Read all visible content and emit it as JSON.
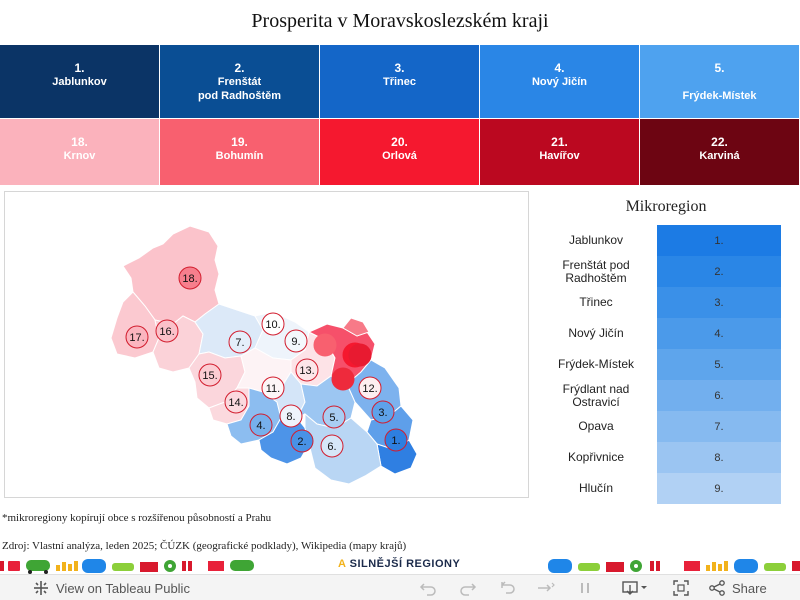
{
  "title": "Prosperita v Moravskoslezském kraji",
  "top_tiles": [
    {
      "rank": "1.",
      "name": "Jablunkov",
      "color": "#0b3466"
    },
    {
      "rank": "2.",
      "name": "Frenštát\npod Radhoštěm",
      "color": "#0a4e94"
    },
    {
      "rank": "3.",
      "name": "Třinec",
      "color": "#1466c8"
    },
    {
      "rank": "4.",
      "name": "Nový Jičín",
      "color": "#2a86e6"
    },
    {
      "rank": "5.",
      "name": "Frýdek-Místek",
      "color": "#4ea2ef"
    }
  ],
  "bottom_tiles": [
    {
      "rank": "18.",
      "name": "Krnov",
      "color": "#fbb2bc"
    },
    {
      "rank": "19.",
      "name": "Bohumín",
      "color": "#f8606f"
    },
    {
      "rank": "20.",
      "name": "Orlová",
      "color": "#f5182f"
    },
    {
      "rank": "21.",
      "name": "Havířov",
      "color": "#bb0820"
    },
    {
      "rank": "22.",
      "name": "Karviná",
      "color": "#6d0512"
    }
  ],
  "map": {
    "markers": [
      {
        "label": "1.",
        "color": "#2e7fe0"
      },
      {
        "label": "2.",
        "color": "#4892e6"
      },
      {
        "label": "3.",
        "color": "#5ea2ea"
      },
      {
        "label": "4.",
        "color": "#76b0ec"
      },
      {
        "label": "5.",
        "color": "#a9cdf2"
      },
      {
        "label": "6.",
        "color": "#d6e7f8"
      },
      {
        "label": "7.",
        "color": "#e4eefa"
      },
      {
        "label": "8.",
        "color": "#eef4fb"
      },
      {
        "label": "9.",
        "color": "#f4f8fc"
      },
      {
        "label": "10.",
        "color": "#ffffff"
      },
      {
        "label": "11.",
        "color": "#fdf6f7"
      },
      {
        "label": "12.",
        "color": "#fdeef0"
      },
      {
        "label": "13.",
        "color": "#fce6e9"
      },
      {
        "label": "14.",
        "color": "#fbd9de"
      },
      {
        "label": "15.",
        "color": "#fbcdd3"
      },
      {
        "label": "16.",
        "color": "#fbc1c9"
      },
      {
        "label": "17.",
        "color": "#fbb5bf"
      },
      {
        "label": "18.",
        "color": "#f77f8d"
      },
      {
        "label": "",
        "color": "#f8606f"
      },
      {
        "label": "",
        "color": "#f5182f"
      },
      {
        "label": "",
        "color": "#ee2a3c"
      },
      {
        "label": "",
        "color": "#e81a30"
      }
    ]
  },
  "legend": {
    "title": "Mikroregion",
    "items": [
      {
        "name": "Jablunkov",
        "rank": "1.",
        "color": "#1c7be4"
      },
      {
        "name": "Frenštát pod Radhoštěm",
        "rank": "2.",
        "color": "#2a86e6"
      },
      {
        "name": "Třinec",
        "rank": "3.",
        "color": "#3a90e8"
      },
      {
        "name": "Nový Jičín",
        "rank": "4.",
        "color": "#4b9aea"
      },
      {
        "name": "Frýdek-Místek",
        "rank": "5.",
        "color": "#5ea5ec"
      },
      {
        "name": "Frýdlant nad Ostravicí",
        "rank": "6.",
        "color": "#72afee"
      },
      {
        "name": "Opava",
        "rank": "7.",
        "color": "#86baf0"
      },
      {
        "name": "Kopřivnice",
        "rank": "8.",
        "color": "#9bc5f2"
      },
      {
        "name": "Hlučín",
        "rank": "9.",
        "color": "#b1d1f4"
      }
    ]
  },
  "footnote": "*mikroregiony kopírují obce s rozšířenou působností a Prahu",
  "source": "Zdroj: Vlastní analýza, leden 2025; ČÚZK (geografické podklady), Wikipedia (mapy krajů)",
  "brand": {
    "accent": "A",
    "rest": " SILNĚJŠÍ REGIONY"
  },
  "toolbar": {
    "view_label": "View on Tableau Public",
    "share_label": "Share",
    "icons": [
      "tableau-logo-icon",
      "undo-icon",
      "redo-icon",
      "revert-icon",
      "refresh-icon",
      "pause-icon",
      "download-icon",
      "fullscreen-icon",
      "share-icon"
    ]
  }
}
